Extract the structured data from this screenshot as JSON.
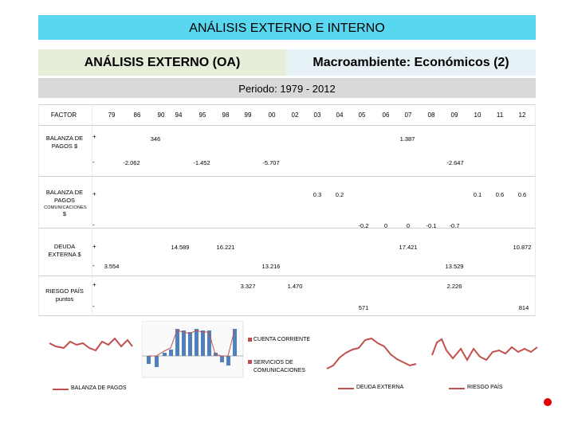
{
  "header": {
    "title": "ANÁLISIS EXTERNO E INTERNO",
    "left_subtitle": "ANÁLISIS EXTERNO (OA)",
    "right_subtitle": "Macroambiente: Económicos (2)",
    "period": "Periodo: 1979 - 2012"
  },
  "table": {
    "factor_label": "FACTOR",
    "years": [
      "79",
      "86",
      "90",
      "94",
      "95",
      "98",
      "99",
      "00",
      "02",
      "03",
      "04",
      "05",
      "06",
      "07",
      "08",
      "09",
      "10",
      "11",
      "12"
    ],
    "rows": [
      {
        "label": "BALANZA DE PAGOS $",
        "plus": "+",
        "minus": "-",
        "pos_values": [
          "346",
          "1.387"
        ],
        "neg_values": [
          "-2.062",
          "-1.452",
          "-5.707",
          "-2.647"
        ]
      },
      {
        "label": "BALANZA DE PAGOS",
        "sublabel": "COMUNICACIONES",
        "unit": "$",
        "plus": "+",
        "minus": "-",
        "pos_values": [
          "0.3",
          "0.2",
          "0.1",
          "0.6",
          "0.6"
        ],
        "neg_values": [
          "-0.2",
          "0",
          "0",
          "-0.1",
          "-0.7"
        ]
      },
      {
        "label": "DEUDA EXTERNA $",
        "plus": "+",
        "minus": "-",
        "pos_values": [
          "14.589",
          "16.221",
          "17.421",
          "10.872"
        ],
        "neg_values": [
          "3.554",
          "13.216",
          "13.529"
        ]
      },
      {
        "label": "RIESGO PAÍS",
        "sublabel": "puntos",
        "plus": "+",
        "minus": "-",
        "pos_values": [
          "3.327",
          "1.470",
          "2.226"
        ],
        "neg_values": [
          "571",
          "814"
        ]
      }
    ]
  },
  "charts": {
    "balanza_legend": "BALANZA DE PAGOS",
    "bar_legend": [
      "CUENTA CORRIENTE",
      "SERVICIOS DE COMUNICACIONES"
    ],
    "deuda_legend": "DEUDA EXTERNA",
    "riesgo_legend": "RIESGO PAÍS"
  },
  "colors": {
    "title_bg": "#5ad7f0",
    "left_sub_bg": "#e6edd8",
    "right_sub_bg": "#e7f2f7",
    "period_bg": "#d9d9d9",
    "line": "#c0504d",
    "bar": "#4f81bd",
    "marker": "#e00000"
  }
}
